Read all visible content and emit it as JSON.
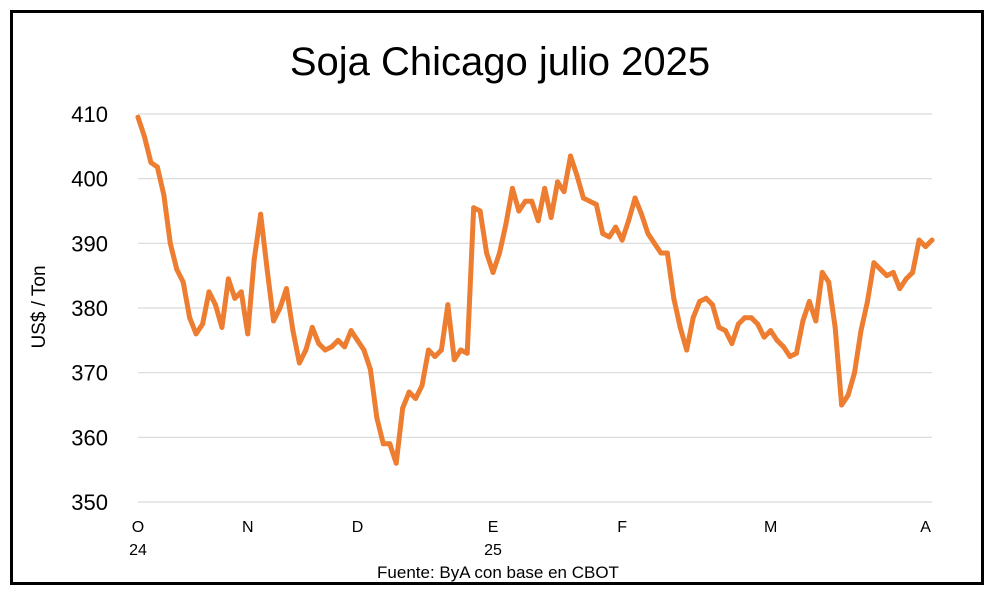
{
  "chart_data": {
    "type": "line",
    "title": "Soja Chicago julio 2025",
    "ylabel": "US$ / Ton",
    "source": "Fuente: ByA con base en CBOT",
    "ylim": [
      350,
      410
    ],
    "yticks": [
      350,
      360,
      370,
      380,
      390,
      400,
      410
    ],
    "grid": true,
    "line_color": "#ED7D31",
    "x_labels": [
      {
        "label": "O",
        "sub": "24",
        "index": 0
      },
      {
        "label": "N",
        "sub": "",
        "index": 17
      },
      {
        "label": "D",
        "sub": "",
        "index": 34
      },
      {
        "label": "E",
        "sub": "25",
        "index": 55
      },
      {
        "label": "F",
        "sub": "",
        "index": 75
      },
      {
        "label": "M",
        "sub": "",
        "index": 98
      },
      {
        "label": "A",
        "sub": "",
        "index": 122
      }
    ],
    "values": [
      409.5,
      406.5,
      402.5,
      401.8,
      397.5,
      390,
      386,
      384,
      378.5,
      376,
      377.5,
      382.5,
      380.5,
      377,
      384.5,
      381.5,
      382.5,
      376,
      387.5,
      394.5,
      386,
      378,
      380,
      383,
      376.5,
      371.5,
      373.5,
      377,
      374.5,
      373.5,
      374,
      375,
      374,
      376.5,
      375,
      373.5,
      370.5,
      363,
      359,
      359,
      356,
      364.5,
      367,
      366,
      368,
      373.5,
      372.5,
      373.5,
      380.5,
      372,
      373.5,
      373,
      395.5,
      395,
      388.5,
      385.5,
      388.5,
      393,
      398.5,
      395,
      396.5,
      396.5,
      393.5,
      398.5,
      394,
      399.5,
      398,
      403.5,
      400.5,
      397,
      396.5,
      396,
      391.5,
      391,
      392.5,
      390.5,
      393.5,
      397,
      394.5,
      391.5,
      390,
      388.5,
      388.5,
      381.5,
      377,
      373.5,
      378.5,
      381,
      381.5,
      380.5,
      377,
      376.5,
      374.5,
      377.5,
      378.5,
      378.5,
      377.5,
      375.5,
      376.5,
      375,
      374,
      372.5,
      373,
      378,
      381,
      378,
      385.5,
      384,
      377,
      365,
      366.5,
      370,
      376.5,
      381,
      387,
      386,
      385,
      385.5,
      383,
      384.5,
      385.5,
      390.5,
      389.5,
      390.5
    ]
  }
}
